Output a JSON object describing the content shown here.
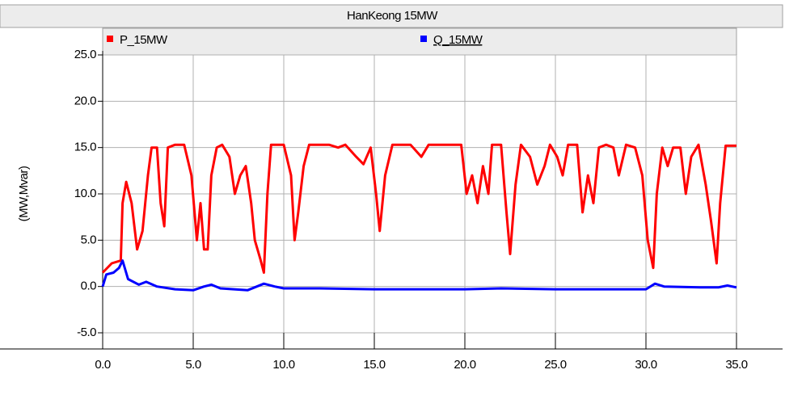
{
  "chart_data": {
    "type": "line",
    "title": "HanKeong 15MW",
    "y_label": "(MW,Mvar)",
    "series": [
      {
        "name": "P_15MW",
        "color": "#ff0000",
        "x": [
          0,
          0.5,
          1.0,
          1.1,
          1.3,
          1.6,
          1.9,
          2.2,
          2.5,
          2.7,
          3.0,
          3.2,
          3.4,
          3.6,
          4.0,
          4.5,
          4.9,
          5.2,
          5.4,
          5.6,
          5.8,
          6.0,
          6.3,
          6.6,
          7.0,
          7.3,
          7.6,
          7.9,
          8.2,
          8.4,
          8.7,
          8.9,
          9.1,
          9.3,
          10.0,
          10.4,
          10.6,
          10.8,
          11.1,
          11.4,
          12.5,
          13.0,
          13.4,
          14.0,
          14.4,
          14.8,
          15.1,
          15.3,
          15.6,
          16.0,
          17.0,
          17.6,
          18.0,
          19.0,
          19.8,
          20.1,
          20.4,
          20.7,
          21.0,
          21.3,
          21.5,
          22.0,
          22.3,
          22.5,
          22.8,
          23.1,
          23.6,
          24.0,
          24.4,
          24.7,
          25.1,
          25.4,
          25.7,
          26.2,
          26.5,
          26.8,
          27.1,
          27.4,
          27.8,
          28.2,
          28.5,
          28.9,
          29.4,
          29.8,
          30.1,
          30.4,
          30.6,
          30.9,
          31.2,
          31.5,
          31.9,
          32.2,
          32.5,
          32.9,
          33.3,
          33.6,
          33.9,
          34.1,
          34.4,
          35.0
        ],
        "values": [
          1.5,
          2.5,
          2.8,
          9,
          11.3,
          9,
          4,
          6,
          12,
          15,
          15,
          9,
          6.5,
          15,
          15.3,
          15.3,
          12,
          5,
          9,
          4,
          4,
          12,
          15,
          15.3,
          14,
          10,
          12,
          13,
          9,
          5,
          3,
          1.5,
          10,
          15.3,
          15.3,
          12,
          5,
          8,
          13,
          15.3,
          15.3,
          15,
          15.3,
          14,
          13.2,
          15,
          10,
          6,
          12,
          15.3,
          15.3,
          14,
          15.3,
          15.3,
          15.3,
          10,
          12,
          9,
          13,
          10,
          15.3,
          15.3,
          8,
          3.5,
          11,
          15.3,
          14,
          11,
          13,
          15.3,
          14,
          12,
          15.3,
          15.3,
          8,
          12,
          9,
          15,
          15.3,
          15,
          12,
          15.3,
          15,
          12,
          5,
          2,
          10,
          15,
          13,
          15,
          15,
          10,
          14,
          15.3,
          11,
          7,
          2.5,
          9,
          15.2,
          15.2
        ]
      },
      {
        "name": "Q_15MW",
        "color": "#0000ff",
        "x": [
          0,
          0.2,
          0.6,
          0.9,
          1.1,
          1.4,
          2.0,
          2.4,
          3.0,
          4.0,
          5.0,
          5.6,
          6.0,
          6.5,
          8.0,
          8.9,
          9.5,
          10.0,
          12.0,
          15.0,
          20.0,
          22.0,
          25.0,
          28.0,
          30.0,
          30.5,
          31.0,
          33.0,
          34.0,
          34.5,
          35.0
        ],
        "values": [
          0,
          1.3,
          1.5,
          2,
          2.8,
          0.8,
          0.2,
          0.5,
          0,
          -0.3,
          -0.4,
          0,
          0.2,
          -0.2,
          -0.4,
          0.3,
          0,
          -0.2,
          -0.2,
          -0.3,
          -0.3,
          -0.2,
          -0.3,
          -0.3,
          -0.3,
          0.3,
          0,
          -0.1,
          -0.1,
          0.1,
          -0.1
        ]
      }
    ],
    "xlim": [
      0,
      35
    ],
    "xticks": [
      {
        "value": 0,
        "label": "0.0"
      },
      {
        "value": 5,
        "label": "5.0"
      },
      {
        "value": 10,
        "label": "10.0"
      },
      {
        "value": 15,
        "label": "15.0"
      },
      {
        "value": 20,
        "label": "20.0"
      },
      {
        "value": 25,
        "label": "25.0"
      },
      {
        "value": 30,
        "label": "30.0"
      },
      {
        "value": 35,
        "label": "35.0"
      }
    ],
    "ylim": [
      -5,
      25
    ],
    "yticks": [
      {
        "value": -5,
        "label": "-5.0"
      },
      {
        "value": 0,
        "label": "0.0"
      },
      {
        "value": 5,
        "label": "5.0"
      },
      {
        "value": 10,
        "label": "10.0"
      },
      {
        "value": 15,
        "label": "15.0"
      },
      {
        "value": 20,
        "label": "20.0"
      },
      {
        "value": 25,
        "label": "25.0"
      }
    ],
    "grid": true
  }
}
